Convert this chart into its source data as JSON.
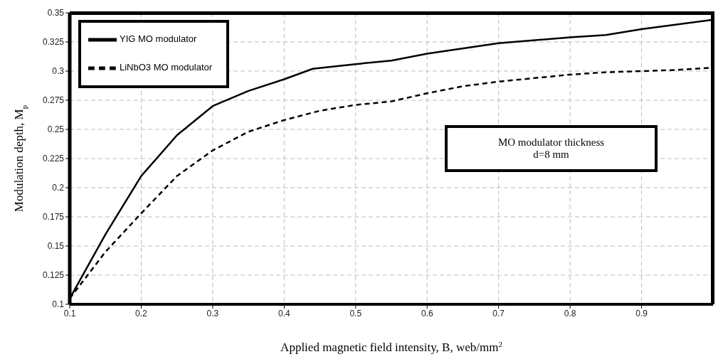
{
  "chart_data": {
    "type": "line",
    "xlabel": "Applied magnetic field intensity, B, web/mm$^{2}$",
    "ylabel": "Modulation depth, M$_{p}$",
    "xlim": [
      0.1,
      1.0
    ],
    "xticks": [
      0.1,
      0.2,
      0.3,
      0.4,
      0.5,
      0.6,
      0.7,
      0.8,
      0.9
    ],
    "ylim": [
      0.1,
      0.35
    ],
    "yticks": [
      0.1,
      0.125,
      0.15,
      0.175,
      0.2,
      0.225,
      0.25,
      0.275,
      0.3,
      0.325,
      0.35
    ],
    "grid": true,
    "legend": "top left",
    "marker": "none",
    "annotations": [
      "MO modulator thickness\nd=8 mm"
    ],
    "series": [
      {
        "name": "YIG MO modulator",
        "color": "#000000",
        "line_style": "solid",
        "x": [
          0.1,
          0.15,
          0.2,
          0.25,
          0.3,
          0.35,
          0.4,
          0.44,
          0.5,
          0.55,
          0.6,
          0.7,
          0.8,
          0.85,
          0.9,
          1.0
        ],
        "values": [
          0.105,
          0.16,
          0.21,
          0.245,
          0.27,
          0.283,
          0.293,
          0.302,
          0.306,
          0.309,
          0.315,
          0.324,
          0.329,
          0.331,
          0.336,
          0.344
        ]
      },
      {
        "name": "LiNbO3 MO modulator",
        "color": "#000000",
        "line_style": "dashed",
        "x": [
          0.1,
          0.15,
          0.2,
          0.25,
          0.3,
          0.35,
          0.4,
          0.45,
          0.5,
          0.55,
          0.6,
          0.65,
          0.7,
          0.75,
          0.8,
          0.85,
          0.9,
          0.95,
          1.0
        ],
        "values": [
          0.105,
          0.145,
          0.178,
          0.21,
          0.232,
          0.248,
          0.258,
          0.266,
          0.271,
          0.274,
          0.281,
          0.287,
          0.291,
          0.294,
          0.297,
          0.299,
          0.3,
          0.301,
          0.303
        ]
      }
    ]
  }
}
